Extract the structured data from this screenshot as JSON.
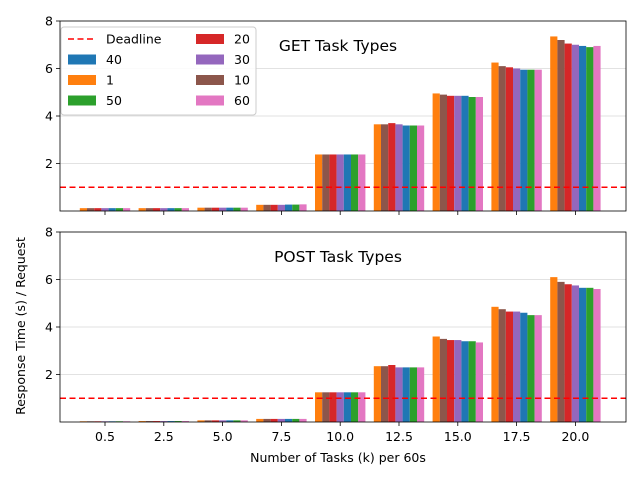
{
  "figure": {
    "ylabel": "Response Time (s) / Request",
    "xlabel": "Number of Tasks (k) per 60s"
  },
  "chart_data": [
    {
      "type": "bar",
      "title": "GET Task Types",
      "categories": [
        "0.5",
        "2.5",
        "5.0",
        "7.5",
        "10.0",
        "12.5",
        "15.0",
        "17.5",
        "20.0"
      ],
      "ylim": [
        0,
        8
      ],
      "yticks": [
        "2",
        "4",
        "6",
        "8"
      ],
      "grid": "horizontal",
      "show_xticklabels": false,
      "deadline": 1.0,
      "series": [
        {
          "name": "1",
          "color": "#ff7f0e",
          "values": [
            0.12,
            0.12,
            0.14,
            0.26,
            2.38,
            3.65,
            4.95,
            6.25,
            7.35
          ]
        },
        {
          "name": "10",
          "color": "#8c564b",
          "values": [
            0.12,
            0.12,
            0.14,
            0.26,
            2.38,
            3.65,
            4.9,
            6.1,
            7.2
          ]
        },
        {
          "name": "20",
          "color": "#d62728",
          "values": [
            0.12,
            0.12,
            0.14,
            0.26,
            2.38,
            3.7,
            4.85,
            6.05,
            7.05
          ]
        },
        {
          "name": "30",
          "color": "#9467bd",
          "values": [
            0.12,
            0.12,
            0.14,
            0.26,
            2.38,
            3.65,
            4.85,
            6.0,
            7.0
          ]
        },
        {
          "name": "40",
          "color": "#1f77b4",
          "values": [
            0.12,
            0.12,
            0.14,
            0.27,
            2.38,
            3.6,
            4.85,
            5.95,
            6.95
          ]
        },
        {
          "name": "50",
          "color": "#2ca02c",
          "values": [
            0.12,
            0.12,
            0.14,
            0.27,
            2.38,
            3.6,
            4.8,
            5.95,
            6.9
          ]
        },
        {
          "name": "60",
          "color": "#e377c2",
          "values": [
            0.12,
            0.12,
            0.14,
            0.28,
            2.38,
            3.6,
            4.8,
            5.95,
            6.95
          ]
        }
      ],
      "legend": {
        "placement": "top-left",
        "ncol": 2,
        "deadline_label": "Deadline",
        "deadline_color": "#ff0000",
        "order": [
          "Deadline",
          "40",
          "1",
          "50",
          "20",
          "30",
          "10",
          "60"
        ]
      }
    },
    {
      "type": "bar",
      "title": "POST Task Types",
      "categories": [
        "0.5",
        "2.5",
        "5.0",
        "7.5",
        "10.0",
        "12.5",
        "15.0",
        "17.5",
        "20.0"
      ],
      "ylim": [
        0,
        8
      ],
      "yticks": [
        "2",
        "4",
        "6",
        "8"
      ],
      "grid": "horizontal",
      "show_xticklabels": true,
      "deadline": 1.0,
      "series": [
        {
          "name": "1",
          "color": "#ff7f0e",
          "values": [
            0.03,
            0.04,
            0.07,
            0.13,
            1.25,
            2.35,
            3.6,
            4.85,
            6.1
          ]
        },
        {
          "name": "10",
          "color": "#8c564b",
          "values": [
            0.03,
            0.04,
            0.07,
            0.13,
            1.25,
            2.35,
            3.5,
            4.75,
            5.9
          ]
        },
        {
          "name": "20",
          "color": "#d62728",
          "values": [
            0.03,
            0.04,
            0.07,
            0.13,
            1.25,
            2.4,
            3.45,
            4.65,
            5.8
          ]
        },
        {
          "name": "30",
          "color": "#9467bd",
          "values": [
            0.03,
            0.04,
            0.07,
            0.13,
            1.25,
            2.3,
            3.45,
            4.65,
            5.75
          ]
        },
        {
          "name": "40",
          "color": "#1f77b4",
          "values": [
            0.03,
            0.04,
            0.07,
            0.13,
            1.25,
            2.3,
            3.4,
            4.6,
            5.65
          ]
        },
        {
          "name": "50",
          "color": "#2ca02c",
          "values": [
            0.03,
            0.04,
            0.07,
            0.13,
            1.25,
            2.3,
            3.4,
            4.5,
            5.65
          ]
        },
        {
          "name": "60",
          "color": "#e377c2",
          "values": [
            0.03,
            0.04,
            0.07,
            0.13,
            1.25,
            2.3,
            3.35,
            4.5,
            5.6
          ]
        }
      ]
    }
  ]
}
